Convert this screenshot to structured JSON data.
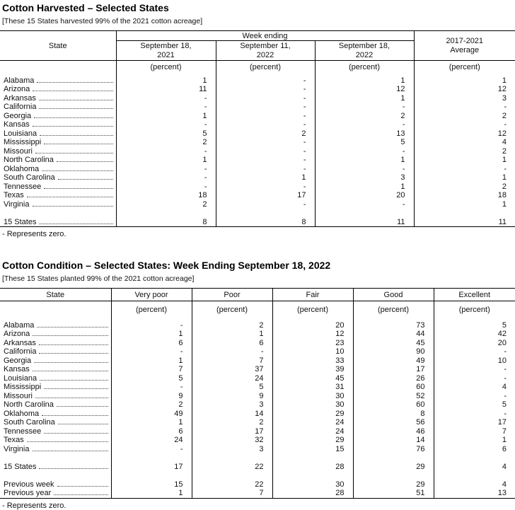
{
  "colors": {
    "text": "#000000",
    "border": "#000000",
    "background": "#ffffff"
  },
  "table1": {
    "title": "Cotton Harvested – Selected States",
    "note": "[These 15 States harvested 99% of the 2021 cotton acreage]",
    "state_header": "State",
    "group_header": "Week ending",
    "avg_header": "2017-2021 Average",
    "columns": [
      "September 18, 2021",
      "September 11, 2022",
      "September 18, 2022"
    ],
    "unit": "(percent)",
    "rows": [
      {
        "state": "Alabama",
        "values": [
          "1",
          "-",
          "1",
          "1"
        ]
      },
      {
        "state": "Arizona",
        "values": [
          "11",
          "-",
          "12",
          "12"
        ]
      },
      {
        "state": "Arkansas",
        "values": [
          "-",
          "-",
          "1",
          "3"
        ]
      },
      {
        "state": "California",
        "values": [
          "-",
          "-",
          "-",
          "-"
        ]
      },
      {
        "state": "Georgia",
        "values": [
          "1",
          "-",
          "2",
          "2"
        ]
      },
      {
        "state": "Kansas",
        "values": [
          "-",
          "-",
          "-",
          "-"
        ]
      },
      {
        "state": "Louisiana",
        "values": [
          "5",
          "2",
          "13",
          "12"
        ]
      },
      {
        "state": "Mississippi",
        "values": [
          "2",
          "-",
          "5",
          "4"
        ]
      },
      {
        "state": "Missouri",
        "values": [
          "-",
          "-",
          "-",
          "2"
        ]
      },
      {
        "state": "North Carolina",
        "values": [
          "1",
          "-",
          "1",
          "1"
        ]
      },
      {
        "state": "Oklahoma",
        "values": [
          "-",
          "-",
          "-",
          "-"
        ]
      },
      {
        "state": "South Carolina",
        "values": [
          "-",
          "1",
          "3",
          "1"
        ]
      },
      {
        "state": "Tennessee",
        "values": [
          "-",
          "-",
          "1",
          "2"
        ]
      },
      {
        "state": "Texas",
        "values": [
          "18",
          "17",
          "20",
          "18"
        ]
      },
      {
        "state": "Virginia",
        "values": [
          "2",
          "-",
          "-",
          "1"
        ]
      }
    ],
    "total_row": {
      "state": "15 States",
      "values": [
        "8",
        "8",
        "11",
        "11"
      ]
    },
    "footnote": "- Represents zero."
  },
  "table2": {
    "title": "Cotton Condition – Selected States: Week Ending September 18, 2022",
    "note": "[These 15 States planted 99% of the 2021 cotton acreage]",
    "state_header": "State",
    "columns": [
      "Very poor",
      "Poor",
      "Fair",
      "Good",
      "Excellent"
    ],
    "unit": "(percent)",
    "rows": [
      {
        "state": "Alabama",
        "values": [
          "-",
          "2",
          "20",
          "73",
          "5"
        ]
      },
      {
        "state": "Arizona",
        "values": [
          "1",
          "1",
          "12",
          "44",
          "42"
        ]
      },
      {
        "state": "Arkansas",
        "values": [
          "6",
          "6",
          "23",
          "45",
          "20"
        ]
      },
      {
        "state": "California",
        "values": [
          "-",
          "-",
          "10",
          "90",
          "-"
        ]
      },
      {
        "state": "Georgia",
        "values": [
          "1",
          "7",
          "33",
          "49",
          "10"
        ]
      },
      {
        "state": "Kansas",
        "values": [
          "7",
          "37",
          "39",
          "17",
          "-"
        ]
      },
      {
        "state": "Louisiana",
        "values": [
          "5",
          "24",
          "45",
          "26",
          "-"
        ]
      },
      {
        "state": "Mississippi",
        "values": [
          "-",
          "5",
          "31",
          "60",
          "4"
        ]
      },
      {
        "state": "Missouri",
        "values": [
          "9",
          "9",
          "30",
          "52",
          "-"
        ]
      },
      {
        "state": "North Carolina",
        "values": [
          "2",
          "3",
          "30",
          "60",
          "5"
        ]
      },
      {
        "state": "Oklahoma",
        "values": [
          "49",
          "14",
          "29",
          "8",
          "-"
        ]
      },
      {
        "state": "South Carolina",
        "values": [
          "1",
          "2",
          "24",
          "56",
          "17"
        ]
      },
      {
        "state": "Tennessee",
        "values": [
          "6",
          "17",
          "24",
          "46",
          "7"
        ]
      },
      {
        "state": "Texas",
        "values": [
          "24",
          "32",
          "29",
          "14",
          "1"
        ]
      },
      {
        "state": "Virginia",
        "values": [
          "-",
          "3",
          "15",
          "76",
          "6"
        ]
      }
    ],
    "total_row": {
      "state": "15 States",
      "values": [
        "17",
        "22",
        "28",
        "29",
        "4"
      ]
    },
    "prev_rows": [
      {
        "state": "Previous week",
        "values": [
          "15",
          "22",
          "30",
          "29",
          "4"
        ]
      },
      {
        "state": "Previous year",
        "values": [
          "1",
          "7",
          "28",
          "51",
          "13"
        ]
      }
    ],
    "footnote": "- Represents zero."
  }
}
